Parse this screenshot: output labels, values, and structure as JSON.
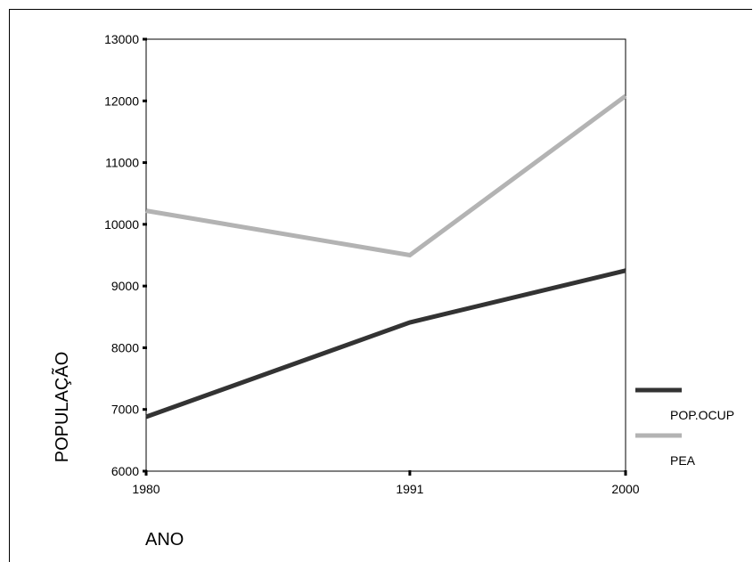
{
  "chart_data": {
    "type": "line",
    "title": "",
    "xlabel": "ANO",
    "ylabel": "POPULAÇÃO",
    "x": [
      1980,
      1991,
      2000
    ],
    "x_tick_labels": [
      "1980",
      "1991",
      "2000"
    ],
    "ylim": [
      6000,
      13000
    ],
    "y_ticks": [
      6000,
      7000,
      8000,
      9000,
      10000,
      11000,
      12000,
      13000
    ],
    "y_tick_labels": [
      "6000",
      "7000",
      "8000",
      "9000",
      "10000",
      "11000",
      "12000",
      "13000"
    ],
    "grid": false,
    "legend_position": "right",
    "series": [
      {
        "name": "POP.OCUP",
        "color": "#333333",
        "values": [
          6880,
          8410,
          9250
        ]
      },
      {
        "name": "PEA",
        "color": "#b3b3b3",
        "values": [
          10220,
          9500,
          12080
        ]
      }
    ]
  }
}
